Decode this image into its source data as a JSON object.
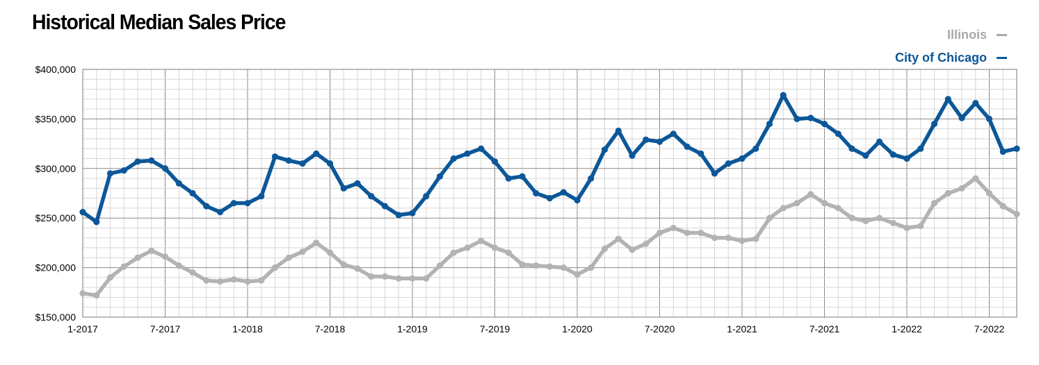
{
  "colors": {
    "illinois": "#b3b3b3",
    "chicago": "#0c5798",
    "grid_minor": "#d6d6d6",
    "grid_major": "#8a8a8a"
  },
  "chart_data": {
    "type": "line",
    "title": "Historical Median Sales Price",
    "xlabel": "",
    "ylabel": "",
    "ylim": [
      150000,
      400000
    ],
    "grid": true,
    "legend": "top-right",
    "y_ticks": [
      "$400,000",
      "$350,000",
      "$300,000",
      "$250,000",
      "$200,000",
      "$150,000"
    ],
    "x_ticks": [
      "1-2017",
      "7-2017",
      "1-2018",
      "7-2018",
      "1-2019",
      "7-2019",
      "1-2020",
      "7-2020",
      "1-2021",
      "7-2021",
      "1-2022",
      "7-2022"
    ],
    "x_start": "1-2017",
    "series": [
      {
        "name": "Illinois",
        "color": "#b3b3b3",
        "values": [
          174000,
          172000,
          190000,
          201000,
          210000,
          217000,
          211000,
          202000,
          195000,
          187000,
          186000,
          188000,
          186000,
          187000,
          200000,
          210000,
          216000,
          225000,
          215000,
          203000,
          199000,
          191000,
          191000,
          189000,
          189000,
          189000,
          202000,
          215000,
          220000,
          227000,
          220000,
          215000,
          203000,
          202000,
          201000,
          200000,
          193000,
          200000,
          219000,
          229000,
          218000,
          224000,
          235000,
          240000,
          235000,
          235000,
          230000,
          230000,
          227000,
          229000,
          250000,
          260000,
          265000,
          274000,
          265000,
          260000,
          250000,
          247000,
          250000,
          245000,
          240000,
          242000,
          265000,
          275000,
          280000,
          290000,
          275000,
          262000,
          254000
        ]
      },
      {
        "name": "City of Chicago",
        "color": "#0c5798",
        "values": [
          256000,
          246000,
          295000,
          298000,
          307000,
          308000,
          300000,
          285000,
          275000,
          262000,
          256000,
          265000,
          265000,
          272000,
          312000,
          308000,
          305000,
          315000,
          305000,
          280000,
          285000,
          272000,
          262000,
          253000,
          255000,
          272000,
          292000,
          310000,
          315000,
          320000,
          307000,
          290000,
          292000,
          275000,
          270000,
          276000,
          268000,
          290000,
          319000,
          338000,
          313000,
          329000,
          327000,
          335000,
          322000,
          315000,
          295000,
          305000,
          310000,
          320000,
          345000,
          374000,
          350000,
          351000,
          345000,
          335000,
          320000,
          313000,
          327000,
          314000,
          310000,
          320000,
          345000,
          370000,
          351000,
          366000,
          350000,
          317000,
          320000
        ]
      }
    ]
  }
}
